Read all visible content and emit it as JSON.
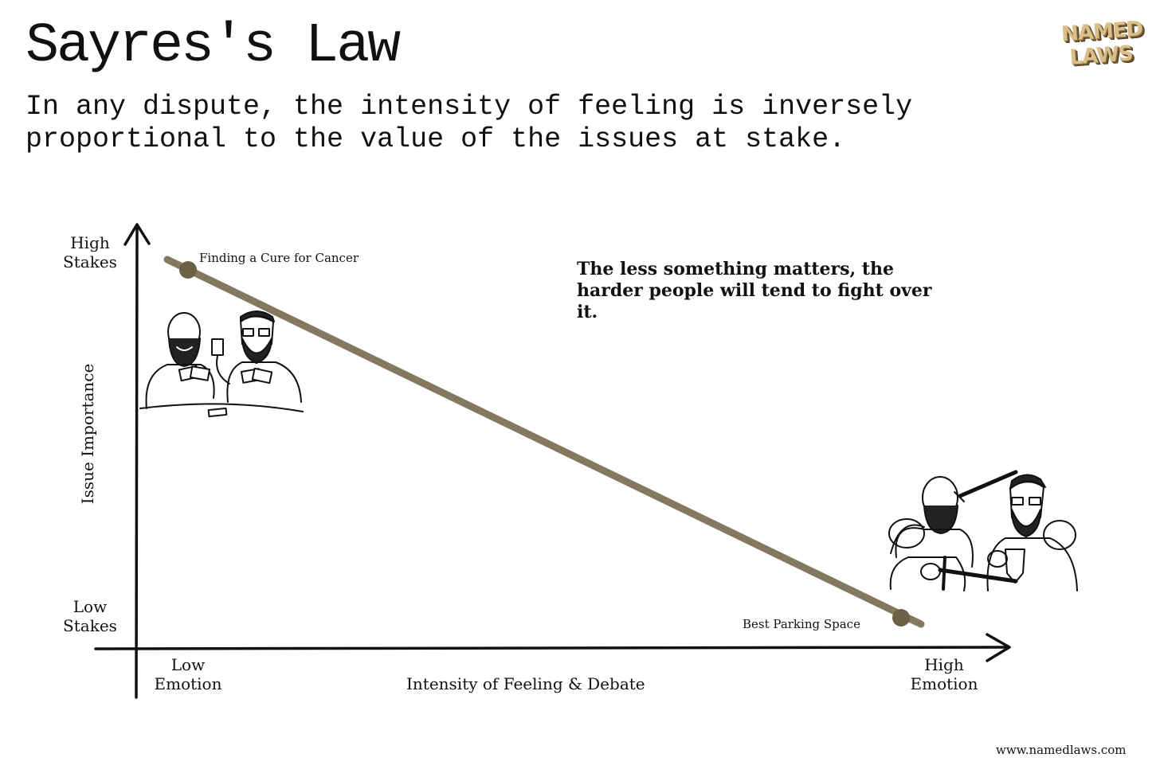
{
  "header": {
    "title": "Sayres's Law",
    "subtitle": "In any dispute, the intensity of feeling is inversely proportional to the value of the issues at stake.",
    "logo_line_1": "NAMED",
    "logo_line_2": "LAWS"
  },
  "diagram": {
    "y_axis": {
      "label": "Issue Importance",
      "high_label": "High\nStakes",
      "low_label": "Low\nStakes"
    },
    "x_axis": {
      "label": "Intensity of Feeling & Debate",
      "low_label": "Low\nEmotion",
      "high_label": "High\nEmotion"
    },
    "points": {
      "top": "Finding a Cure for Cancer",
      "bottom": "Best Parking Space"
    },
    "annotation": "The less something matters, the harder people will tend to fight over it.",
    "line_color": "#7a6d54",
    "illustrations": [
      "card-players-illustration",
      "sword-fighters-illustration"
    ]
  },
  "footer": {
    "url": "www.namedlaws.com"
  }
}
